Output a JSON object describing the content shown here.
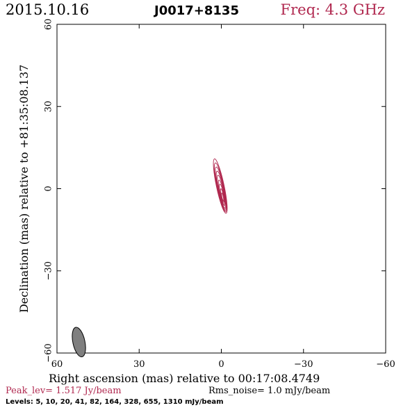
{
  "header": {
    "date": "2015.10.16",
    "source": "J0017+8135",
    "frequency": "Freq: 4.3 GHz"
  },
  "colors": {
    "accent": "#b0284f",
    "text": "#000000",
    "beam_fill": "#7f7f7f"
  },
  "chart_data": {
    "type": "contour",
    "xlabel": "Right ascension (mas) relative to 00:17:08.4749",
    "ylabel": "Declination (mas) relative to +81:35:08.137",
    "xlim": [
      60,
      -60
    ],
    "ylim": [
      -60,
      60
    ],
    "xticks": [
      60,
      30,
      0,
      -30,
      -60
    ],
    "yticks": [
      -60,
      -30,
      0,
      30,
      60
    ],
    "xtick_labels": [
      "60",
      "30",
      "0",
      "−30",
      "−60"
    ],
    "ytick_labels": [
      "−60",
      "−30",
      "0",
      "30",
      "60"
    ],
    "peak_label": "Peak_lev=  1.517 Jy/beam",
    "rms_label": "Rms_noise=  1.0 mJy/beam",
    "levels_label": "Levels:   5,  10,  20,  41,  82, 164, 328, 655, 1310 mJy/beam",
    "levels_mJy": [
      5,
      10,
      20,
      41,
      82,
      164,
      328,
      655,
      1310
    ],
    "source_center": [
      0,
      0
    ],
    "beam": {
      "x": 52,
      "y": -56,
      "major": 5.5,
      "minor": 2.2,
      "pa_deg": 12
    }
  }
}
